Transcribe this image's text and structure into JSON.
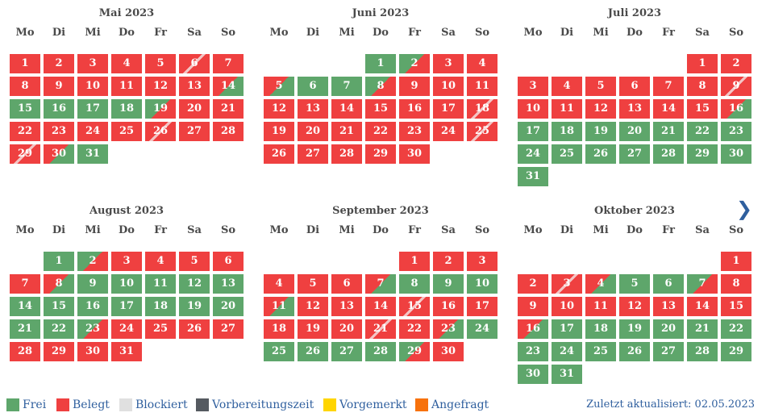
{
  "weekdays": [
    "Mo",
    "Di",
    "Mi",
    "Do",
    "Fr",
    "Sa",
    "So"
  ],
  "next_icon": "chevron-right-icon",
  "months": [
    {
      "title": "Mai 2023",
      "start": 0,
      "days": [
        "b",
        "b",
        "b",
        "b",
        "b",
        "bb",
        "b",
        "b",
        "b",
        "b",
        "b",
        "b",
        "b",
        "bf",
        "f",
        "f",
        "f",
        "f",
        "fb",
        "b",
        "b",
        "b",
        "b",
        "b",
        "b",
        "bb",
        "b",
        "b",
        "bb",
        "bf",
        "f"
      ]
    },
    {
      "title": "Juni 2023",
      "start": 3,
      "days": [
        "f",
        "fb",
        "b",
        "b",
        "bf",
        "f",
        "f",
        "fb",
        "b",
        "b",
        "b",
        "b",
        "b",
        "b",
        "b",
        "b",
        "b",
        "bb",
        "b",
        "b",
        "b",
        "b",
        "b",
        "b",
        "bb",
        "b",
        "b",
        "b",
        "b",
        "b"
      ]
    },
    {
      "title": "Juli 2023",
      "start": 5,
      "days": [
        "b",
        "b",
        "b",
        "b",
        "b",
        "b",
        "b",
        "b",
        "bb",
        "b",
        "b",
        "b",
        "b",
        "b",
        "b",
        "bf",
        "f",
        "f",
        "f",
        "f",
        "f",
        "f",
        "f",
        "f",
        "f",
        "f",
        "f",
        "f",
        "f",
        "f",
        "f"
      ]
    },
    {
      "title": "August 2023",
      "start": 1,
      "days": [
        "f",
        "fb",
        "b",
        "b",
        "b",
        "b",
        "b",
        "bf",
        "f",
        "f",
        "f",
        "f",
        "f",
        "f",
        "f",
        "f",
        "f",
        "f",
        "f",
        "f",
        "f",
        "f",
        "fb",
        "b",
        "b",
        "b",
        "b",
        "b",
        "b",
        "b",
        "b"
      ]
    },
    {
      "title": "September 2023",
      "start": 4,
      "days": [
        "b",
        "b",
        "b",
        "b",
        "b",
        "b",
        "bf",
        "f",
        "f",
        "f",
        "bf",
        "b",
        "b",
        "b",
        "bb",
        "b",
        "b",
        "b",
        "b",
        "b",
        "bb",
        "b",
        "bf",
        "f",
        "f",
        "f",
        "f",
        "f",
        "fb",
        "b"
      ]
    },
    {
      "title": "Oktober 2023",
      "start": 6,
      "days": [
        "b",
        "b",
        "bb",
        "bf",
        "f",
        "f",
        "fb",
        "b",
        "b",
        "b",
        "b",
        "b",
        "b",
        "b",
        "b",
        "bf",
        "f",
        "f",
        "f",
        "f",
        "f",
        "f",
        "f",
        "f",
        "f",
        "f",
        "f",
        "f",
        "f",
        "f",
        "f"
      ]
    }
  ],
  "legend": [
    {
      "label": "Frei",
      "color": "#5ea66b"
    },
    {
      "label": "Belegt",
      "color": "#ef4040"
    },
    {
      "label": "Blockiert",
      "color": "#e0e0e0"
    },
    {
      "label": "Vorbereitungszeit",
      "color": "#555a60"
    },
    {
      "label": "Vorgemerkt",
      "color": "#ffd500"
    },
    {
      "label": "Angefragt",
      "color": "#f7720c"
    }
  ],
  "updated": "Zuletzt aktualisiert: 02.05.2023",
  "colors": {
    "frei": "#5ea66b",
    "belegt": "#ef4040",
    "text": "#2f5f9e"
  }
}
